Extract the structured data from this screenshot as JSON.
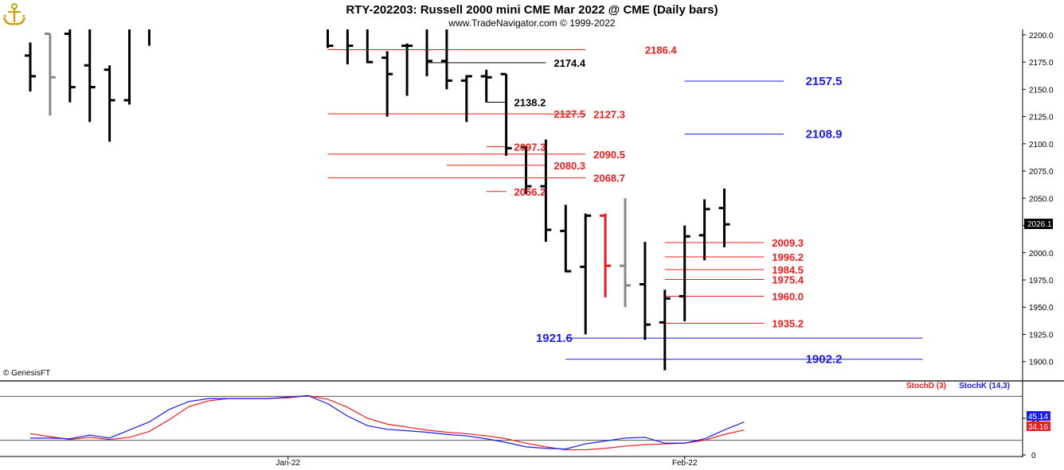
{
  "header": {
    "title": "RTY-202203:  Russell 2000 mini CME Mar 2022 @ CME  (Daily bars)",
    "subtitle": "www.TradeNavigator.com © 1999-2022"
  },
  "copyright": "© GenesisFT",
  "colors": {
    "red": "#ee1c1c",
    "blue": "#1a1aee",
    "black": "#000000",
    "gray": "#888888"
  },
  "chart_data": [
    {
      "type": "bar",
      "subtype": "ohlc",
      "title": "RTY-202203:  Russell 2000 mini CME Mar 2022 @ CME  (Daily bars)",
      "ylim": [
        1883,
        2205
      ],
      "y_ticks": [
        "2200.0",
        "2175.0",
        "2150.0",
        "2125.0",
        "2100.0",
        "2075.0",
        "2050.0",
        "2025.0",
        "2000.0",
        "1975.0",
        "1950.0",
        "1925.0",
        "1900.0"
      ],
      "x_ticks": [
        {
          "label": "Jan-22",
          "index": 13
        },
        {
          "label": "Feb-22",
          "index": 33
        }
      ],
      "last_price": "2026.1",
      "bars": [
        {
          "i": 0,
          "o": 2181,
          "h": 2193,
          "l": 2148,
          "c": 2162,
          "color": "black"
        },
        {
          "i": 1,
          "o": 2201,
          "h": 2201,
          "l": 2126,
          "c": 2161,
          "color": "gray"
        },
        {
          "i": 2,
          "o": 2201,
          "h": 2205,
          "l": 2138,
          "c": 2152,
          "color": "black"
        },
        {
          "i": 3,
          "o": 2172,
          "h": 2205,
          "l": 2120,
          "c": 2152,
          "color": "black"
        },
        {
          "i": 4,
          "o": 2168,
          "h": 2172,
          "l": 2102,
          "c": 2140,
          "color": "black"
        },
        {
          "i": 5,
          "o": 2140,
          "h": 2205,
          "l": 2136,
          "c": 2205,
          "color": "black"
        },
        {
          "i": 6,
          "o": 2205,
          "h": 2205,
          "l": 2190,
          "c": 2205,
          "color": "black"
        },
        {
          "i": 15,
          "o": 2205,
          "h": 2205,
          "l": 2188,
          "c": 2190,
          "color": "black"
        },
        {
          "i": 16,
          "o": 2205,
          "h": 2205,
          "l": 2173,
          "c": 2190,
          "color": "black"
        },
        {
          "i": 17,
          "o": 2205,
          "h": 2205,
          "l": 2174,
          "c": 2175,
          "color": "black"
        },
        {
          "i": 18,
          "o": 2179,
          "h": 2185,
          "l": 2125,
          "c": 2164,
          "color": "black"
        },
        {
          "i": 19,
          "o": 2190,
          "h": 2192,
          "l": 2144,
          "c": 2190,
          "color": "black"
        },
        {
          "i": 20,
          "o": 2205,
          "h": 2205,
          "l": 2162,
          "c": 2176,
          "color": "black"
        },
        {
          "i": 21,
          "o": 2176,
          "h": 2205,
          "l": 2150,
          "c": 2158,
          "color": "black"
        },
        {
          "i": 22,
          "o": 2158,
          "h": 2163,
          "l": 2120,
          "c": 2162,
          "color": "black"
        },
        {
          "i": 23,
          "o": 2162,
          "h": 2168,
          "l": 2138,
          "c": 2161,
          "color": "black"
        },
        {
          "i": 24,
          "o": 2164,
          "h": 2164,
          "l": 2089,
          "c": 2096,
          "color": "black"
        },
        {
          "i": 25,
          "o": 2097,
          "h": 2098,
          "l": 2054,
          "c": 2061,
          "color": "black"
        },
        {
          "i": 26,
          "o": 2061,
          "h": 2104,
          "l": 2010,
          "c": 2021,
          "color": "black"
        },
        {
          "i": 27,
          "o": 2020,
          "h": 2044,
          "l": 1982,
          "c": 1983,
          "color": "black"
        },
        {
          "i": 28,
          "o": 1987,
          "h": 2036,
          "l": 1925,
          "c": 2034,
          "color": "black"
        },
        {
          "i": 29,
          "o": 2034,
          "h": 2036,
          "l": 1959,
          "c": 1988,
          "color": "red"
        },
        {
          "i": 30,
          "o": 1988,
          "h": 2050,
          "l": 1950,
          "c": 1970,
          "color": "gray"
        },
        {
          "i": 31,
          "o": 1971,
          "h": 2010,
          "l": 1920,
          "c": 1934,
          "color": "black"
        },
        {
          "i": 32,
          "o": 1936,
          "h": 1966,
          "l": 1892,
          "c": 1958,
          "color": "black"
        },
        {
          "i": 33,
          "o": 1960,
          "h": 2025,
          "l": 1937,
          "c": 2015,
          "color": "black"
        },
        {
          "i": 34,
          "o": 2016,
          "h": 2049,
          "l": 1993,
          "c": 2040,
          "color": "black"
        },
        {
          "i": 35,
          "o": 2041,
          "h": 2059,
          "l": 2005,
          "c": 2026,
          "color": "black"
        }
      ],
      "levels": [
        {
          "label": "2186.4",
          "value": 2186.4,
          "color": "red",
          "x_from": 15,
          "x_to": 28,
          "label_at": 31,
          "style": "normal"
        },
        {
          "label": "2174.4",
          "value": 2174.4,
          "color": "black",
          "x_from": 20,
          "x_to": 26,
          "label_at": 26.4,
          "style": "normal"
        },
        {
          "label": "2157.5",
          "value": 2157.5,
          "color": "blue",
          "x_from": 33,
          "x_to": 38,
          "label_at": 39.1,
          "style": "big"
        },
        {
          "label": "2138.2",
          "value": 2138.2,
          "color": "black",
          "x_from": 23,
          "x_to": 24,
          "label_at": 24.4,
          "style": "normal"
        },
        {
          "label": "2127.5",
          "value": 2127.5,
          "color": "red",
          "x_from": 15,
          "x_to": 26,
          "label_at": 26.4,
          "style": "normal"
        },
        {
          "label": "2127.3",
          "value": 2127.3,
          "color": "red",
          "x_from": 26,
          "x_to": 28,
          "label_at": 28.4,
          "style": "normal"
        },
        {
          "label": "2108.9",
          "value": 2108.9,
          "color": "blue",
          "x_from": 33,
          "x_to": 38,
          "label_at": 39.1,
          "style": "big"
        },
        {
          "label": "2097.3",
          "value": 2097.3,
          "color": "red",
          "x_from": 23,
          "x_to": 24,
          "label_at": 24.4,
          "style": "normal"
        },
        {
          "label": "2090.5",
          "value": 2090.5,
          "color": "red",
          "x_from": 15,
          "x_to": 28,
          "label_at": 28.4,
          "style": "normal"
        },
        {
          "label": "2080.3",
          "value": 2080.3,
          "color": "red",
          "x_from": 21,
          "x_to": 26,
          "label_at": 26.4,
          "style": "normal"
        },
        {
          "label": "2068.7",
          "value": 2068.7,
          "color": "red",
          "x_from": 15,
          "x_to": 28,
          "label_at": 28.4,
          "style": "normal"
        },
        {
          "label": "2056.2",
          "value": 2056.2,
          "color": "red",
          "x_from": 23,
          "x_to": 24,
          "label_at": 24.4,
          "style": "normal"
        },
        {
          "label": "2009.3",
          "value": 2009.3,
          "color": "red",
          "x_from": 32,
          "x_to": 37,
          "label_at": 37.4,
          "style": "normal"
        },
        {
          "label": "1996.2",
          "value": 1996.2,
          "color": "red",
          "x_from": 32,
          "x_to": 37,
          "label_at": 37.4,
          "style": "normal"
        },
        {
          "label": "1984.5",
          "value": 1984.5,
          "color": "red",
          "x_from": 32,
          "x_to": 37,
          "label_at": 37.4,
          "style": "normal"
        },
        {
          "label": "1975.4",
          "value": 1975.4,
          "color": "red",
          "x_from": 32,
          "x_to": 37,
          "label_at": 37.4,
          "style": "normal"
        },
        {
          "label": "1960.0",
          "value": 1960.0,
          "color": "red",
          "x_from": 32,
          "x_to": 37,
          "label_at": 37.4,
          "style": "normal"
        },
        {
          "label": "1935.2",
          "value": 1935.2,
          "color": "red",
          "x_from": 32,
          "x_to": 37,
          "label_at": 37.4,
          "style": "normal"
        },
        {
          "label": "1921.6",
          "value": 1921.6,
          "color": "blue",
          "x_from": 27,
          "x_to": 45,
          "label_at": 25.5,
          "style": "big"
        },
        {
          "label": "1902.2",
          "value": 1902.2,
          "color": "blue",
          "x_from": 27,
          "x_to": 45,
          "label_at": 39.1,
          "style": "big"
        }
      ]
    },
    {
      "type": "line",
      "title": "",
      "ylim": [
        0,
        100
      ],
      "y_ticks": [
        "50",
        "0"
      ],
      "ref_lines": [
        80,
        20
      ],
      "legend": [
        "StochD (3)",
        "StochK (14,3)"
      ],
      "last_values": {
        "d": "34.16",
        "k": "45.14"
      },
      "series": [
        {
          "name": "StochD (3)",
          "color": "red",
          "values": [
            [
              0,
              29
            ],
            [
              1,
              25
            ],
            [
              2,
              21
            ],
            [
              3,
              24
            ],
            [
              4,
              21
            ],
            [
              5,
              24
            ],
            [
              6,
              32
            ],
            [
              7,
              48
            ],
            [
              8,
              66
            ],
            [
              9,
              74
            ],
            [
              10,
              77
            ],
            [
              11,
              77
            ],
            [
              12,
              77
            ],
            [
              13,
              78
            ],
            [
              14,
              81
            ],
            [
              15,
              76
            ],
            [
              16,
              65
            ],
            [
              17,
              50
            ],
            [
              18,
              42
            ],
            [
              19,
              38
            ],
            [
              20,
              34
            ],
            [
              21,
              31
            ],
            [
              22,
              29
            ],
            [
              23,
              26
            ],
            [
              24,
              22
            ],
            [
              25,
              16
            ],
            [
              26,
              11
            ],
            [
              27,
              7
            ],
            [
              28,
              7
            ],
            [
              29,
              9
            ],
            [
              30,
              12
            ],
            [
              31,
              14
            ],
            [
              32,
              15
            ],
            [
              33,
              16
            ],
            [
              34,
              20
            ],
            [
              35,
              28
            ],
            [
              36,
              34
            ]
          ]
        },
        {
          "name": "StochK (14,3)",
          "color": "blue",
          "values": [
            [
              0,
              23
            ],
            [
              1,
              23
            ],
            [
              2,
              22
            ],
            [
              3,
              27
            ],
            [
              4,
              23
            ],
            [
              5,
              34
            ],
            [
              6,
              45
            ],
            [
              7,
              62
            ],
            [
              8,
              73
            ],
            [
              9,
              77
            ],
            [
              10,
              77
            ],
            [
              11,
              77
            ],
            [
              12,
              77
            ],
            [
              13,
              79
            ],
            [
              14,
              81
            ],
            [
              15,
              70
            ],
            [
              16,
              53
            ],
            [
              17,
              40
            ],
            [
              18,
              35
            ],
            [
              19,
              33
            ],
            [
              20,
              31
            ],
            [
              21,
              28
            ],
            [
              22,
              26
            ],
            [
              23,
              22
            ],
            [
              24,
              17
            ],
            [
              25,
              11
            ],
            [
              26,
              9
            ],
            [
              27,
              8
            ],
            [
              28,
              15
            ],
            [
              29,
              19
            ],
            [
              30,
              23
            ],
            [
              31,
              24
            ],
            [
              32,
              16
            ],
            [
              33,
              16
            ],
            [
              34,
              22
            ],
            [
              35,
              34
            ],
            [
              36,
              45
            ]
          ]
        }
      ]
    }
  ]
}
